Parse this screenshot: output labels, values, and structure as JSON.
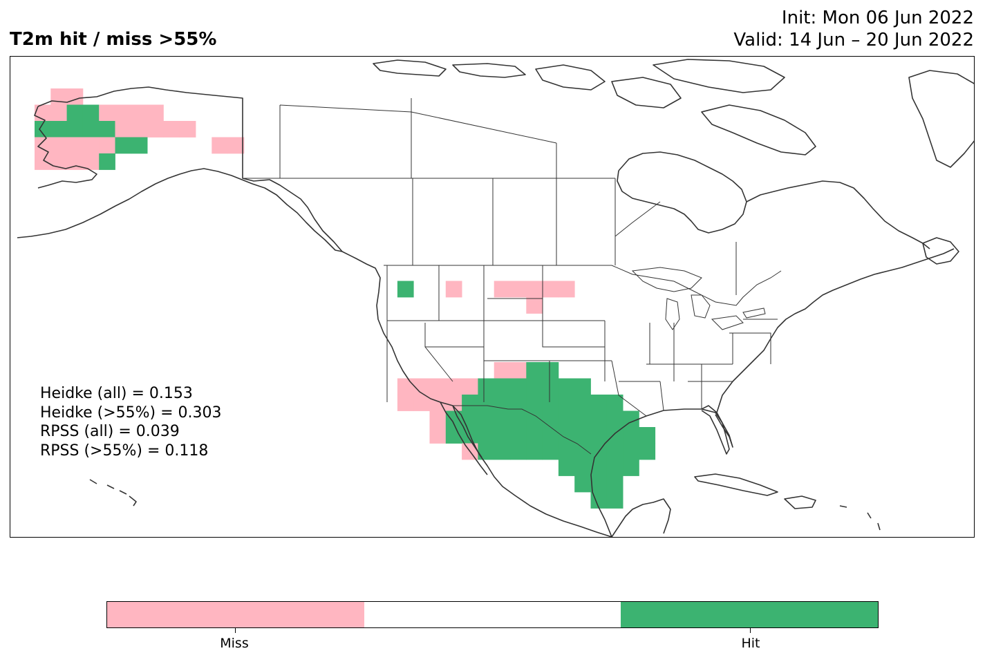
{
  "title": "T2m hit / miss  >55%",
  "init_line": "Init: Mon 06 Jun 2022",
  "valid_line": "Valid: 14 Jun – 20 Jun 2022",
  "stats": [
    "Heidke (all) = 0.153",
    "Heidke (>55%) = 0.303",
    "RPSS (all) = 0.039",
    "RPSS (>55%) = 0.118"
  ],
  "colors": {
    "miss": "#ffb6c1",
    "none": "#ffffff",
    "hit": "#3cb371",
    "line": "#333333"
  },
  "colorbar": {
    "segments": [
      "miss",
      "none",
      "hit"
    ],
    "labels": [
      "Miss",
      "Hit"
    ]
  }
}
